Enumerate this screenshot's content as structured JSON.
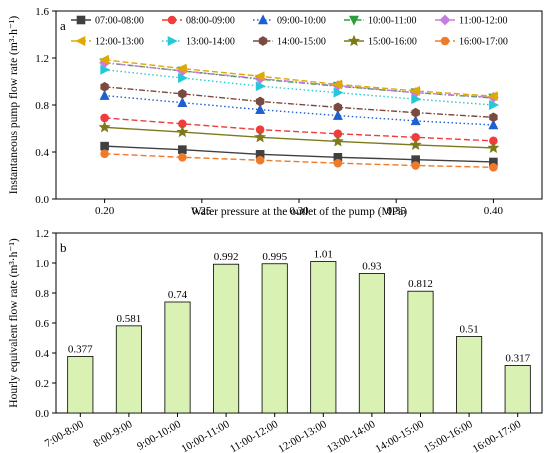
{
  "chart_data": [
    {
      "type": "line",
      "panel": "a",
      "xlabel": "Water pressure at the outlet of the pump (MPa)",
      "ylabel": "Instantaneous pump flow rate (m³·h⁻¹)",
      "xlim": [
        0.175,
        0.425
      ],
      "ylim": [
        0.0,
        1.6
      ],
      "xticks": [
        "0.20",
        "0.25",
        "0.30",
        "0.35",
        "0.40"
      ],
      "xtick_values": [
        0.2,
        0.25,
        0.3,
        0.35,
        0.4
      ],
      "yticks": [
        "0.0",
        "0.4",
        "0.8",
        "1.2",
        "1.6"
      ],
      "ytick_values": [
        0.0,
        0.4,
        0.8,
        1.2,
        1.6
      ],
      "x": [
        0.2,
        0.24,
        0.28,
        0.32,
        0.36,
        0.4
      ],
      "series": [
        {
          "name": "07:00-08:00",
          "color": "#404040",
          "marker": "square",
          "dash": "solid",
          "values": [
            0.45,
            0.42,
            0.38,
            0.355,
            0.335,
            0.315
          ]
        },
        {
          "name": "08:00-09:00",
          "color": "#f03c3c",
          "marker": "circle",
          "dash": "dash",
          "values": [
            0.69,
            0.64,
            0.59,
            0.555,
            0.525,
            0.495
          ]
        },
        {
          "name": "09:00-10:00",
          "color": "#1f5fd1",
          "marker": "triangle-up",
          "dash": "dot",
          "values": [
            0.88,
            0.82,
            0.76,
            0.71,
            0.665,
            0.63
          ]
        },
        {
          "name": "10:00-11:00",
          "color": "#2e9e3e",
          "marker": "triangle-down",
          "dash": "dashdot",
          "values": [
            1.16,
            1.09,
            1.02,
            0.96,
            0.905,
            0.86
          ]
        },
        {
          "name": "11:00-12:00",
          "color": "#c77de0",
          "marker": "diamond",
          "dash": "dashdotdot",
          "values": [
            1.16,
            1.09,
            1.025,
            0.965,
            0.905,
            0.865
          ]
        },
        {
          "name": "12:00-13:00",
          "color": "#e0a800",
          "marker": "triangle-left",
          "dash": "dash",
          "values": [
            1.185,
            1.11,
            1.045,
            0.975,
            0.92,
            0.875
          ]
        },
        {
          "name": "13:00-14:00",
          "color": "#24c8d8",
          "marker": "triangle-right",
          "dash": "dot",
          "values": [
            1.1,
            1.03,
            0.96,
            0.905,
            0.85,
            0.8
          ]
        },
        {
          "name": "14:00-15:00",
          "color": "#7a4a40",
          "marker": "hexagon",
          "dash": "dashdot",
          "values": [
            0.955,
            0.895,
            0.83,
            0.78,
            0.735,
            0.695
          ]
        },
        {
          "name": "15:00-16:00",
          "color": "#7d7a1a",
          "marker": "star",
          "dash": "solid",
          "values": [
            0.61,
            0.57,
            0.525,
            0.49,
            0.46,
            0.435
          ]
        },
        {
          "name": "16:00-17:00",
          "color": "#f07a2a",
          "marker": "circle",
          "dash": "dash",
          "values": [
            0.385,
            0.355,
            0.33,
            0.305,
            0.285,
            0.27
          ]
        }
      ],
      "legend": "top, inside, 5 columns"
    },
    {
      "type": "bar",
      "panel": "b",
      "ylabel": "Hourly equivalent flow rate (m³·h⁻¹)",
      "xlabel": "",
      "ylim": [
        0.0,
        1.2
      ],
      "yticks": [
        "0.0",
        "0.2",
        "0.4",
        "0.6",
        "0.8",
        "1.0",
        "1.2"
      ],
      "ytick_values": [
        0.0,
        0.2,
        0.4,
        0.6,
        0.8,
        1.0,
        1.2
      ],
      "categories": [
        "7:00-8:00",
        "8:00-9:00",
        "9:00-10:00",
        "10:00-11:00",
        "11:00-12:00",
        "12:00-13:00",
        "13:00-14:00",
        "14:00-15:00",
        "15:00-16:00",
        "16:00-17:00"
      ],
      "values": [
        0.377,
        0.581,
        0.74,
        0.992,
        0.995,
        1.01,
        0.93,
        0.812,
        0.51,
        0.317
      ],
      "value_labels": [
        "0.377",
        "0.581",
        "0.74",
        "0.992",
        "0.995",
        "1.01",
        "0.93",
        "0.812",
        "0.51",
        "0.317"
      ],
      "bar_color": "#d9f2b4",
      "bar_stroke": "#000000"
    }
  ]
}
